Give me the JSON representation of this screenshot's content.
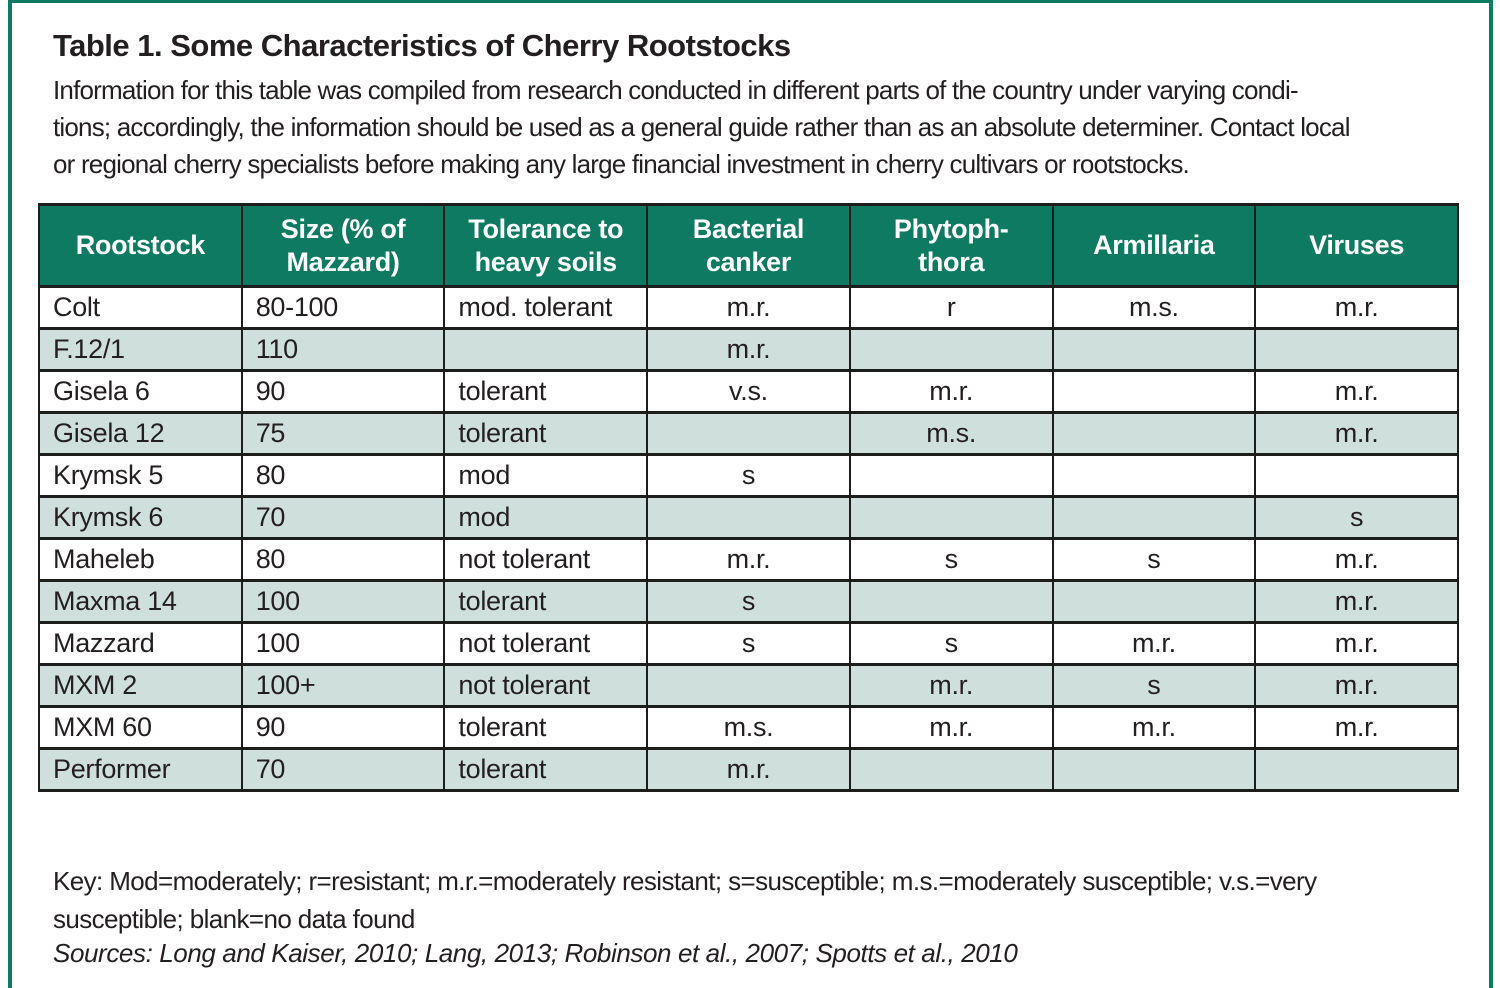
{
  "page": {
    "title": "Table 1. Some Characteristics of Cherry Rootstocks",
    "intro": "Information for this table was compiled from research conducted in different parts of the country under varying condi-\ntions; accordingly, the information should be used as a general guide rather than as an absolute determiner. Contact local\nor regional cherry specialists before making any large financial investment in cherry cultivars or rootstocks.",
    "key": "Key: Mod=moderately; r=resistant; m.r.=moderately resistant; s=susceptible; m.s.=moderately susceptible; v.s.=very\nsusceptible; blank=no data found",
    "sources": "Sources: Long and Kaiser, 2010; Lang, 2013; Robinson et al., 2007; Spotts et al., 2010"
  },
  "table": {
    "headers": [
      "Rootstock",
      "Size (% of\nMazzard)",
      "Tolerance to\nheavy soils",
      "Bacterial\ncanker",
      "Phytoph-\nthora",
      "Armillaria",
      "Viruses"
    ],
    "rows": [
      [
        "Colt",
        "80-100",
        "mod. tolerant",
        "m.r.",
        "r",
        "m.s.",
        "m.r."
      ],
      [
        "F.12/1",
        "110",
        "",
        "m.r.",
        "",
        "",
        ""
      ],
      [
        "Gisela 6",
        "90",
        "tolerant",
        "v.s.",
        "m.r.",
        "",
        "m.r."
      ],
      [
        "Gisela 12",
        "75",
        "tolerant",
        "",
        "m.s.",
        "",
        "m.r."
      ],
      [
        "Krymsk 5",
        "80",
        "mod",
        "s",
        "",
        "",
        ""
      ],
      [
        "Krymsk 6",
        "70",
        "mod",
        "",
        "",
        "",
        "s"
      ],
      [
        "Maheleb",
        "80",
        "not tolerant",
        "m.r.",
        "s",
        "s",
        "m.r."
      ],
      [
        "Maxma 14",
        "100",
        "tolerant",
        "s",
        "",
        "",
        "m.r."
      ],
      [
        "Mazzard",
        "100",
        "not tolerant",
        "s",
        "s",
        "m.r.",
        "m.r."
      ],
      [
        "MXM 2",
        "100+",
        "not tolerant",
        "",
        "m.r.",
        "s",
        "m.r."
      ],
      [
        "MXM 60",
        "90",
        "tolerant",
        "m.s.",
        "m.r.",
        "m.r.",
        "m.r."
      ],
      [
        "Performer",
        "70",
        "tolerant",
        "m.r.",
        "",
        "",
        ""
      ]
    ]
  },
  "colors": {
    "header-bg": "#0e7a62",
    "row-alt": "#cfe0dc",
    "frame": "#0e7a62",
    "text": "#231f20",
    "border": "#1d1d1b"
  }
}
